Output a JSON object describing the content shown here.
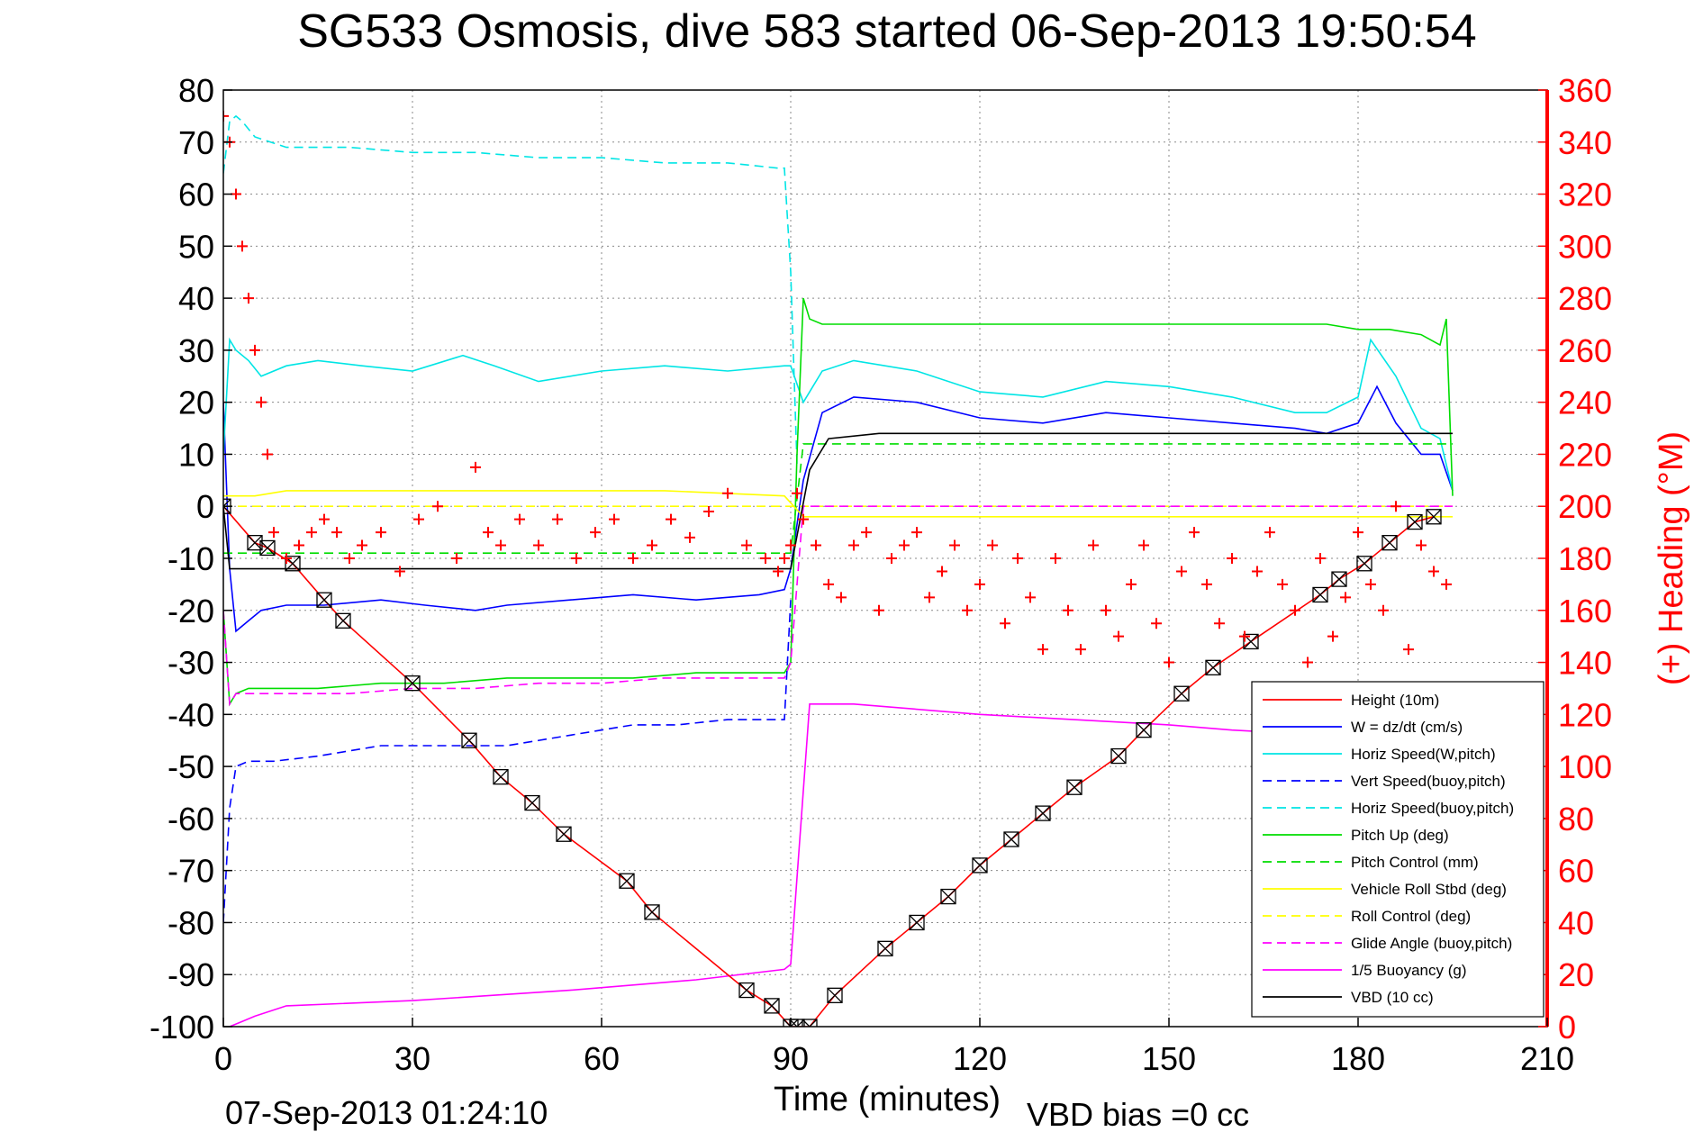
{
  "chart_data": {
    "type": "line",
    "title": "SG533 Osmosis, dive 583 started 06-Sep-2013 19:50:54",
    "xlabel": "Time (minutes)",
    "ylabel_right": "(+) Heading (°M)",
    "end_time_label": "07-Sep-2013 01:24:10",
    "vbd_bias_label": "VBD bias =0 cc",
    "xlim": [
      0,
      210
    ],
    "ylim": [
      -100,
      80
    ],
    "ylim_right": [
      0,
      360
    ],
    "x_ticks": [
      0,
      30,
      60,
      90,
      120,
      150,
      180,
      210
    ],
    "y_ticks": [
      80,
      70,
      60,
      50,
      40,
      30,
      20,
      10,
      0,
      -10,
      -20,
      -30,
      -40,
      -50,
      -60,
      -70,
      -80,
      -90,
      -100
    ],
    "y_ticks_right": [
      360,
      340,
      320,
      300,
      280,
      260,
      240,
      220,
      200,
      180,
      160,
      140,
      120,
      100,
      80,
      60,
      40,
      20,
      0
    ],
    "grid": true,
    "legend_position": "bottom-right",
    "colors": {
      "height": "#ff0000",
      "w": "#0000ff",
      "horiz_speed": "#00e5e5",
      "vert_speed_buoy": "#0000ff",
      "horiz_speed_buoy": "#00e5e5",
      "pitch_up": "#00dd00",
      "pitch_control": "#00dd00",
      "roll": "#ffff00",
      "roll_control": "#ffff00",
      "glide_angle": "#ff00ff",
      "buoyancy": "#ff00ff",
      "vbd": "#000000",
      "heading": "#ff0000"
    },
    "series": [
      {
        "name": "Height (10m)",
        "key": "height",
        "style": "solid",
        "marker": "bowtie",
        "x": [
          0,
          5,
          7,
          11,
          16,
          19,
          30,
          39,
          44,
          49,
          54,
          64,
          68,
          83,
          87,
          90,
          91,
          93,
          97,
          105,
          110,
          115,
          120,
          125,
          130,
          135,
          142,
          146,
          152,
          157,
          163,
          174,
          177,
          181,
          185,
          189,
          192
        ],
        "y": [
          0,
          -7,
          -8,
          -11,
          -18,
          -22,
          -34,
          -45,
          -52,
          -57,
          -63,
          -72,
          -78,
          -93,
          -96,
          -100,
          -100,
          -100,
          -94,
          -85,
          -80,
          -75,
          -69,
          -64,
          -59,
          -54,
          -48,
          -43,
          -36,
          -31,
          -26,
          -17,
          -14,
          -11,
          -7,
          -3,
          -2
        ]
      },
      {
        "name": "W = dz/dt (cm/s)",
        "key": "w",
        "style": "solid",
        "x": [
          0,
          1,
          2,
          4,
          6,
          10,
          16,
          25,
          32,
          40,
          45,
          55,
          65,
          75,
          85,
          89,
          90,
          92,
          95,
          100,
          110,
          120,
          130,
          140,
          150,
          160,
          170,
          175,
          180,
          183,
          186,
          190,
          193,
          195
        ],
        "y": [
          20,
          -12,
          -24,
          -22,
          -20,
          -19,
          -19,
          -18,
          -19,
          -20,
          -19,
          -18,
          -17,
          -18,
          -17,
          -16,
          -12,
          5,
          18,
          21,
          20,
          17,
          16,
          18,
          17,
          16,
          15,
          14,
          16,
          23,
          16,
          10,
          10,
          3
        ]
      },
      {
        "name": "Horiz Speed(W,pitch)",
        "key": "horiz_speed",
        "style": "solid",
        "x": [
          0,
          1,
          2,
          4,
          6,
          10,
          15,
          22,
          30,
          38,
          43,
          50,
          60,
          70,
          80,
          89,
          90,
          92,
          95,
          100,
          110,
          120,
          130,
          140,
          150,
          160,
          170,
          175,
          180,
          182,
          186,
          190,
          193,
          195
        ],
        "y": [
          10,
          32,
          30,
          28,
          25,
          27,
          28,
          27,
          26,
          29,
          27,
          24,
          26,
          27,
          26,
          27,
          27,
          20,
          26,
          28,
          26,
          22,
          21,
          24,
          23,
          21,
          18,
          18,
          21,
          32,
          25,
          15,
          13,
          3
        ]
      },
      {
        "name": "Vert Speed(buoy,pitch)",
        "key": "vert_speed_buoy",
        "style": "dashed",
        "x": [
          0,
          1,
          2,
          4,
          8,
          15,
          25,
          35,
          45,
          55,
          65,
          72,
          80,
          89,
          90
        ],
        "y": [
          -80,
          -58,
          -50,
          -49,
          -49,
          -48,
          -46,
          -46,
          -46,
          -44,
          -42,
          -42,
          -41,
          -41,
          -18
        ]
      },
      {
        "name": "Horiz Speed(buoy,pitch)",
        "key": "horiz_speed_buoy",
        "style": "dashed",
        "x": [
          0,
          1,
          2,
          3,
          5,
          10,
          20,
          30,
          40,
          50,
          60,
          70,
          80,
          88,
          89,
          90,
          91
        ],
        "y": [
          64,
          74,
          75,
          74,
          71,
          69,
          69,
          68,
          68,
          67,
          67,
          66,
          66,
          65,
          65,
          45,
          8
        ]
      },
      {
        "name": "Pitch Up (deg)",
        "key": "pitch_up",
        "style": "solid",
        "x": [
          0,
          1,
          2,
          4,
          8,
          15,
          25,
          35,
          45,
          55,
          65,
          75,
          85,
          89,
          90,
          91,
          92,
          93,
          95,
          105,
          115,
          125,
          135,
          145,
          155,
          165,
          175,
          180,
          185,
          190,
          193,
          194,
          195
        ],
        "y": [
          -20,
          -38,
          -36,
          -35,
          -35,
          -35,
          -34,
          -34,
          -33,
          -33,
          -33,
          -32,
          -32,
          -32,
          -30,
          10,
          40,
          36,
          35,
          35,
          35,
          35,
          35,
          35,
          35,
          35,
          35,
          34,
          34,
          33,
          31,
          36,
          2
        ]
      },
      {
        "name": "Pitch Control (mm)",
        "key": "pitch_control",
        "style": "dashed",
        "x": [
          0,
          90,
          92,
          195
        ],
        "y": [
          -9,
          -9,
          12,
          12
        ]
      },
      {
        "name": "Vehicle Roll Stbd (deg)",
        "key": "roll",
        "style": "solid",
        "x": [
          0,
          5,
          10,
          30,
          50,
          70,
          89,
          92,
          100,
          130,
          160,
          190,
          195
        ],
        "y": [
          2,
          2,
          3,
          3,
          3,
          3,
          2,
          -2,
          -2,
          -2,
          -2,
          -2,
          -2
        ]
      },
      {
        "name": "Roll Control (deg)",
        "key": "roll_control",
        "style": "dashed",
        "x": [
          0,
          90,
          92,
          195
        ],
        "y": [
          0,
          0,
          0,
          0
        ]
      },
      {
        "name": "Glide Angle (buoy,pitch)",
        "key": "glide_angle",
        "style": "dashed",
        "x": [
          0,
          1,
          2,
          4,
          10,
          20,
          30,
          40,
          50,
          60,
          70,
          80,
          89,
          90,
          92,
          100,
          130,
          160,
          195
        ],
        "y": [
          -20,
          -38,
          -36,
          -36,
          -36,
          -36,
          -35,
          -35,
          -34,
          -34,
          -33,
          -33,
          -33,
          -30,
          0,
          0,
          0,
          0,
          0
        ]
      },
      {
        "name": "1/5 Buoyancy (g)",
        "key": "buoyancy",
        "style": "solid",
        "x": [
          1,
          3,
          5,
          10,
          30,
          55,
          75,
          89,
          90,
          93,
          100,
          120,
          150,
          160,
          175
        ],
        "y": [
          -100,
          -99,
          -98,
          -96,
          -95,
          -93,
          -91,
          -89,
          -88,
          -38,
          -38,
          -40,
          -42,
          -43,
          -44
        ]
      },
      {
        "name": "VBD (10 cc)",
        "key": "vbd",
        "style": "solid",
        "x": [
          0,
          1,
          3,
          90,
          93,
          96,
          104,
          195
        ],
        "y": [
          0,
          -12,
          -12,
          -12,
          7,
          13,
          14,
          14
        ]
      }
    ],
    "heading_series": {
      "name": "Heading",
      "axis": "right",
      "marker": "+",
      "x": [
        0,
        1,
        2,
        3,
        4,
        5,
        6,
        7,
        8,
        10,
        12,
        14,
        16,
        18,
        20,
        22,
        25,
        28,
        31,
        34,
        37,
        40,
        42,
        44,
        47,
        50,
        53,
        56,
        59,
        62,
        65,
        68,
        71,
        74,
        77,
        80,
        83,
        86,
        88,
        89,
        90,
        91,
        92,
        94,
        96,
        98,
        100,
        102,
        104,
        106,
        108,
        110,
        112,
        114,
        116,
        118,
        120,
        122,
        124,
        126,
        128,
        130,
        132,
        134,
        136,
        138,
        140,
        142,
        144,
        146,
        148,
        150,
        152,
        154,
        156,
        158,
        160,
        162,
        164,
        166,
        168,
        170,
        172,
        174,
        176,
        178,
        180,
        182,
        184,
        186,
        188,
        190,
        192,
        194
      ],
      "y": [
        350,
        340,
        320,
        300,
        280,
        260,
        240,
        220,
        190,
        180,
        185,
        190,
        195,
        190,
        180,
        185,
        190,
        175,
        195,
        200,
        180,
        215,
        190,
        185,
        195,
        185,
        195,
        180,
        190,
        195,
        180,
        185,
        195,
        188,
        198,
        205,
        185,
        180,
        175,
        180,
        185,
        205,
        195,
        185,
        170,
        165,
        185,
        190,
        160,
        180,
        185,
        190,
        165,
        175,
        185,
        160,
        170,
        185,
        155,
        180,
        165,
        145,
        180,
        160,
        145,
        185,
        160,
        150,
        170,
        185,
        155,
        140,
        175,
        190,
        170,
        155,
        180,
        150,
        175,
        190,
        170,
        160,
        140,
        180,
        150,
        165,
        190,
        170,
        160,
        200,
        145,
        185,
        175,
        170
      ]
    }
  }
}
